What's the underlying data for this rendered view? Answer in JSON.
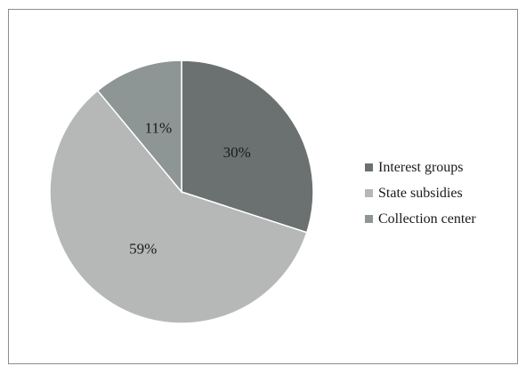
{
  "chart_data": {
    "type": "pie",
    "slices": [
      {
        "label": "Interest groups",
        "value": 30,
        "value_label": "30%",
        "color": "#6b7170"
      },
      {
        "label": "State subsidies",
        "value": 59,
        "value_label": "59%",
        "color": "#b6b8b8"
      },
      {
        "label": "Collection center",
        "value": 11,
        "value_label": "11%",
        "color": "#8d9595"
      }
    ],
    "legend_placement": "right",
    "slice_border_color": "#ffffff"
  }
}
